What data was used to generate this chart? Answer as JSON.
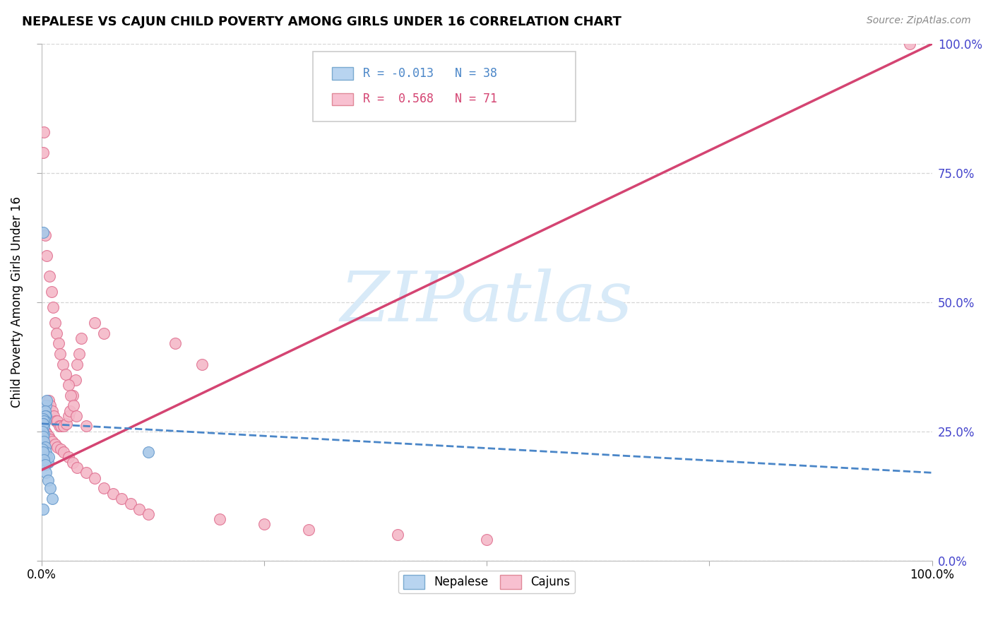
{
  "title": "NEPALESE VS CAJUN CHILD POVERTY AMONG GIRLS UNDER 16 CORRELATION CHART",
  "source": "Source: ZipAtlas.com",
  "ylabel_left": "Child Poverty Among Girls Under 16",
  "legend_nepalese": {
    "R": "-0.013",
    "N": "38"
  },
  "legend_cajun": {
    "R": "0.568",
    "N": "71"
  },
  "nepalese_line_color": "#4a86c8",
  "cajun_line_color": "#d44472",
  "nepalese_scatter_facecolor": "#a8c8e8",
  "nepalese_scatter_edgecolor": "#6699cc",
  "cajun_scatter_facecolor": "#f4b8c8",
  "cajun_scatter_edgecolor": "#e07090",
  "legend_nepalese_face": "#b8d4f0",
  "legend_nepalese_edge": "#7aaad0",
  "legend_cajun_face": "#f8c0d0",
  "legend_cajun_edge": "#e08898",
  "grid_color": "#cccccc",
  "watermark_color": "#d8eaf8",
  "right_tick_color": "#4444cc",
  "xlim": [
    0.0,
    1.0
  ],
  "ylim": [
    0.0,
    1.0
  ],
  "nepalese_x": [
    0.002,
    0.003,
    0.004,
    0.005,
    0.006,
    0.002,
    0.003,
    0.004,
    0.005,
    0.001,
    0.002,
    0.003,
    0.004,
    0.003,
    0.004,
    0.002,
    0.003,
    0.002,
    0.003,
    0.002,
    0.001,
    0.002,
    0.003,
    0.004,
    0.005,
    0.006,
    0.007,
    0.008,
    0.001,
    0.002,
    0.003,
    0.004,
    0.005,
    0.007,
    0.01,
    0.012,
    0.12,
    0.002
  ],
  "nepalese_y": [
    0.635,
    0.245,
    0.285,
    0.3,
    0.31,
    0.26,
    0.27,
    0.29,
    0.28,
    0.26,
    0.27,
    0.275,
    0.28,
    0.265,
    0.27,
    0.275,
    0.27,
    0.265,
    0.26,
    0.265,
    0.25,
    0.24,
    0.23,
    0.22,
    0.21,
    0.2,
    0.19,
    0.2,
    0.215,
    0.21,
    0.195,
    0.185,
    0.17,
    0.155,
    0.14,
    0.12,
    0.21,
    0.1
  ],
  "cajun_x": [
    0.003,
    0.005,
    0.007,
    0.008,
    0.01,
    0.012,
    0.014,
    0.016,
    0.018,
    0.02,
    0.022,
    0.025,
    0.028,
    0.03,
    0.032,
    0.035,
    0.038,
    0.04,
    0.042,
    0.045,
    0.004,
    0.006,
    0.009,
    0.011,
    0.013,
    0.015,
    0.017,
    0.019,
    0.021,
    0.024,
    0.027,
    0.03,
    0.033,
    0.036,
    0.039,
    0.05,
    0.06,
    0.07,
    0.15,
    0.18,
    0.003,
    0.004,
    0.005,
    0.006,
    0.007,
    0.008,
    0.009,
    0.01,
    0.012,
    0.015,
    0.018,
    0.022,
    0.025,
    0.03,
    0.035,
    0.04,
    0.05,
    0.06,
    0.07,
    0.08,
    0.09,
    0.1,
    0.11,
    0.12,
    0.2,
    0.25,
    0.3,
    0.4,
    0.5,
    0.975,
    0.002
  ],
  "cajun_y": [
    0.83,
    0.3,
    0.29,
    0.31,
    0.3,
    0.29,
    0.28,
    0.27,
    0.27,
    0.26,
    0.26,
    0.26,
    0.265,
    0.28,
    0.29,
    0.32,
    0.35,
    0.38,
    0.4,
    0.43,
    0.63,
    0.59,
    0.55,
    0.52,
    0.49,
    0.46,
    0.44,
    0.42,
    0.4,
    0.38,
    0.36,
    0.34,
    0.32,
    0.3,
    0.28,
    0.26,
    0.46,
    0.44,
    0.42,
    0.38,
    0.25,
    0.25,
    0.245,
    0.245,
    0.24,
    0.24,
    0.235,
    0.235,
    0.23,
    0.225,
    0.22,
    0.215,
    0.21,
    0.2,
    0.19,
    0.18,
    0.17,
    0.16,
    0.14,
    0.13,
    0.12,
    0.11,
    0.1,
    0.09,
    0.08,
    0.07,
    0.06,
    0.05,
    0.04,
    1.0,
    0.79
  ],
  "cajun_line_y0": 0.175,
  "cajun_line_y1": 1.0,
  "nepal_line_y0": 0.265,
  "nepal_line_y1": 0.17
}
